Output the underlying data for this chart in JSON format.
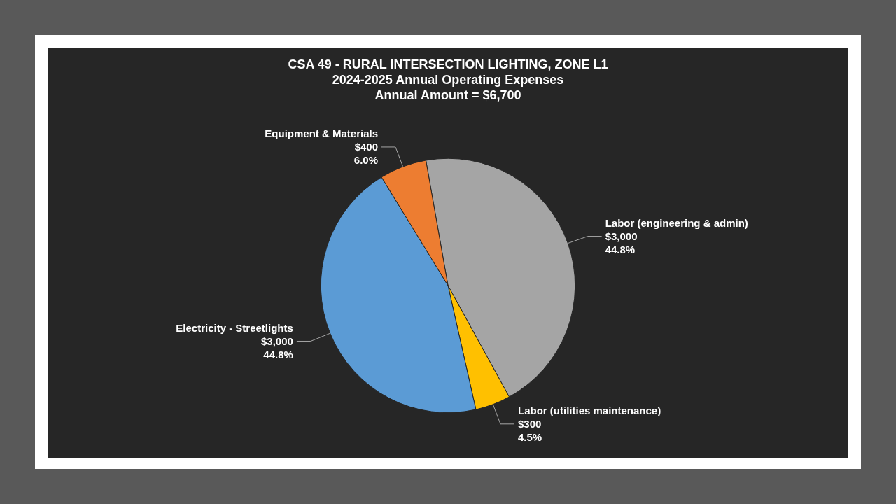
{
  "chart_data": {
    "type": "pie",
    "title": "CSA 49 - RURAL INTERSECTION LIGHTING, ZONE L1",
    "subtitle": "2024-2025 Annual Operating Expenses\nAnnual Amount = $6,700",
    "categories": [
      "Labor (engineering & admin)",
      "Labor (utilities maintenance)",
      "Electricity - Streetlights",
      "Equipment & Materials"
    ],
    "values": [
      3000,
      300,
      3000,
      400
    ],
    "value_labels": [
      "$3,000\n44.8%",
      "$300\n4.5%",
      "$3,000\n44.8%",
      "$400\n6.0%"
    ],
    "colors": [
      "#a5a5a5",
      "#ffc000",
      "#5b9bd5",
      "#ed7d31"
    ],
    "legend": false
  }
}
